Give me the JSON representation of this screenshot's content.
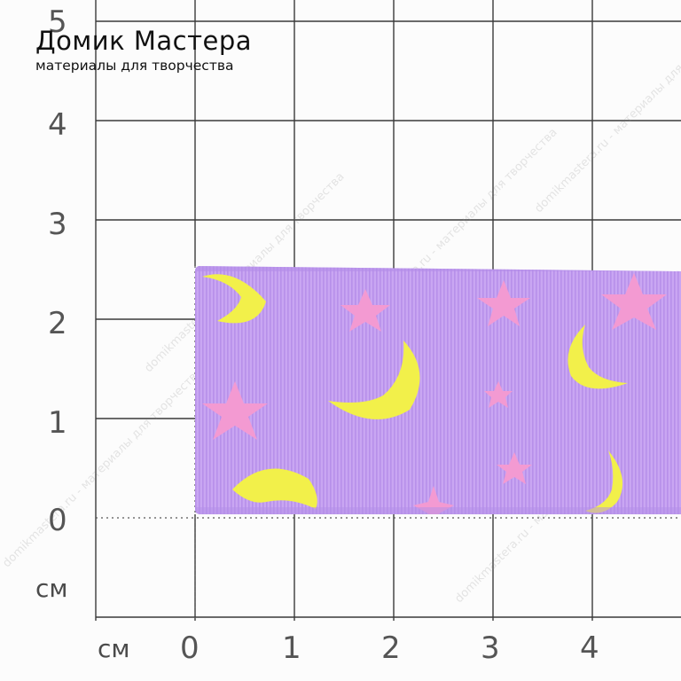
{
  "brand": {
    "name": "Домик Мастера",
    "tagline": "материалы для творчества"
  },
  "ruler": {
    "unit": "см",
    "x_ticks": [
      "0",
      "1",
      "2",
      "3",
      "4"
    ],
    "y_ticks": [
      "0",
      "1",
      "2",
      "3",
      "4",
      "5"
    ],
    "unit_x_label": "см",
    "unit_y_label": "см"
  },
  "watermark": {
    "text": "domikmastera.ru - материалы для творчества"
  },
  "ribbon": {
    "base_color": "#c9a6f2",
    "stripe_color": "#b790ea",
    "moon_color": "#f2f04a",
    "star_color": "#f39ad2",
    "width_cm": 2.5
  }
}
